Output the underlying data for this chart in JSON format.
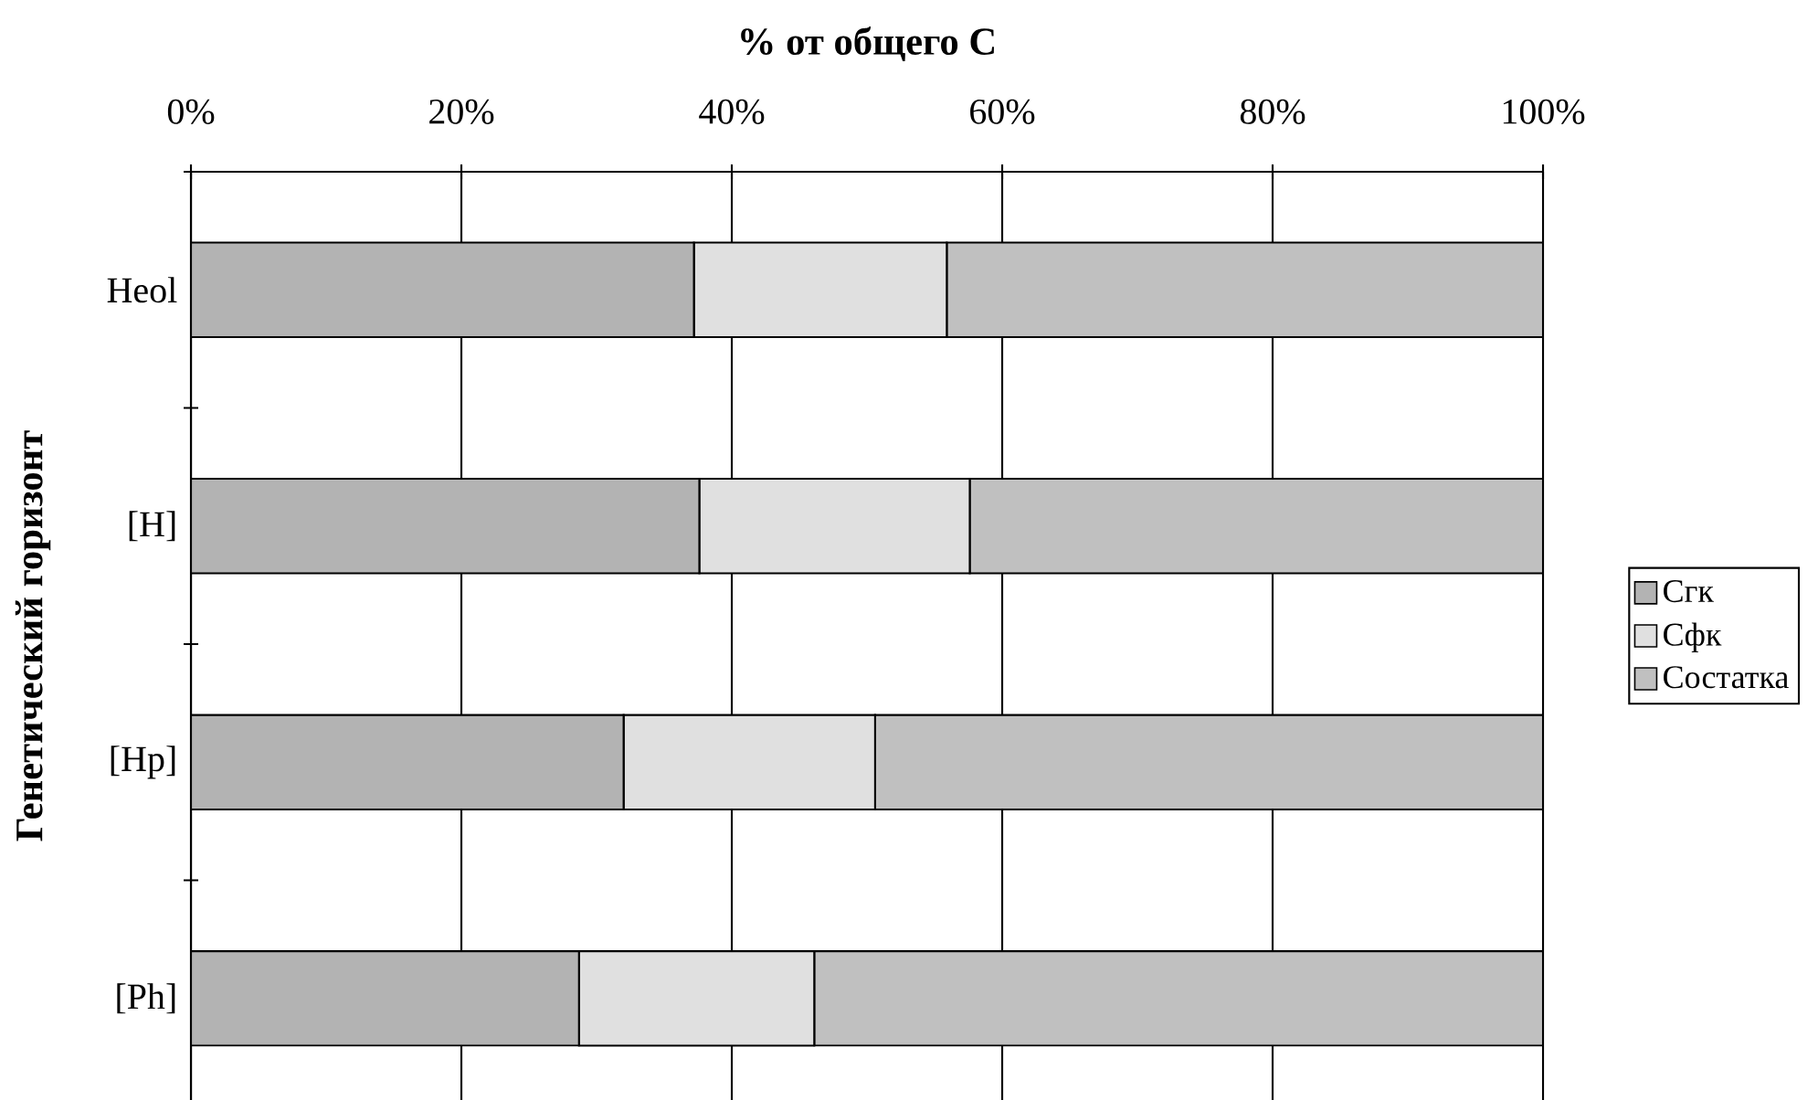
{
  "chart_data": {
    "type": "bar",
    "orientation": "horizontal",
    "stacked": true,
    "xlabel": "% от общего С",
    "ylabel": "Генетический горизонт",
    "categories": [
      "Heol",
      "[H]",
      "[Hp]",
      "[Ph]"
    ],
    "series": [
      {
        "name": "Сгк",
        "color": "#b3b3b3",
        "values": [
          37.2,
          37.6,
          32.0,
          28.7
        ]
      },
      {
        "name": "Сфк",
        "color": "#e0e0e0",
        "values": [
          18.7,
          20.0,
          18.6,
          17.4
        ]
      },
      {
        "name": "Состатка",
        "color": "#c0c0c0",
        "values": [
          44.1,
          42.4,
          49.4,
          53.9
        ]
      }
    ],
    "xlim": [
      0,
      100
    ],
    "xticks": [
      {
        "value": 0,
        "label": "0%"
      },
      {
        "value": 20,
        "label": "20%"
      },
      {
        "value": 40,
        "label": "40%"
      },
      {
        "value": 60,
        "label": "60%"
      },
      {
        "value": 80,
        "label": "80%"
      },
      {
        "value": 100,
        "label": "100%"
      }
    ],
    "grid": "x",
    "legend": "right"
  }
}
